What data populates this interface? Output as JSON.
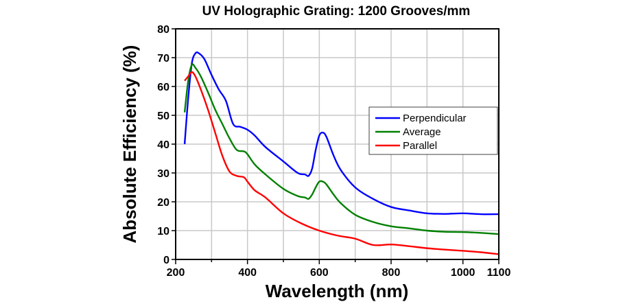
{
  "chart_data": {
    "type": "line",
    "title": "UV Holographic Grating: 1200 Grooves/mm",
    "xlabel": "Wavelength (nm)",
    "ylabel": "Absolute Efficiency (%)",
    "xlim": [
      200,
      1100
    ],
    "ylim": [
      0,
      80
    ],
    "xticks": [
      200,
      400,
      600,
      800,
      1000,
      1100
    ],
    "xtick_labels": [
      "200",
      "400",
      "600",
      "800",
      "1000",
      "1100"
    ],
    "yticks": [
      0,
      10,
      20,
      30,
      40,
      50,
      60,
      70,
      80
    ],
    "ytick_labels": [
      "0",
      "10",
      "20",
      "30",
      "40",
      "50",
      "60",
      "70",
      "80"
    ],
    "grid": true,
    "legend": {
      "position": "center-right"
    },
    "series": [
      {
        "name": "Perpendicular",
        "color": "#0000ff",
        "x": [
          225,
          235,
          245,
          255,
          265,
          280,
          300,
          320,
          340,
          360,
          380,
          400,
          420,
          450,
          500,
          540,
          560,
          570,
          580,
          590,
          600,
          610,
          620,
          640,
          660,
          700,
          750,
          800,
          850,
          900,
          950,
          1000,
          1050,
          1100
        ],
        "y": [
          40,
          56,
          68,
          71.5,
          71.5,
          69.5,
          64,
          59,
          55,
          47,
          46,
          45,
          43,
          39,
          34,
          30,
          29.5,
          29,
          31.5,
          38,
          43,
          44,
          42.5,
          36,
          31,
          25,
          21,
          18.2,
          17,
          16,
          15.8,
          16,
          15.7,
          15.7
        ]
      },
      {
        "name": "Average",
        "color": "#008000",
        "x": [
          225,
          235,
          245,
          255,
          270,
          290,
          310,
          330,
          350,
          370,
          390,
          400,
          420,
          450,
          500,
          540,
          560,
          570,
          580,
          590,
          600,
          610,
          620,
          640,
          660,
          700,
          750,
          800,
          850,
          900,
          950,
          1000,
          1050,
          1100
        ],
        "y": [
          51,
          62,
          67.5,
          66.5,
          63.5,
          58,
          52,
          47,
          42,
          38,
          37.5,
          36.5,
          33,
          29.5,
          24.5,
          22,
          21.5,
          21,
          22.5,
          25,
          27,
          27,
          26,
          22.5,
          19.5,
          15.5,
          13,
          11.5,
          10.8,
          10,
          9.6,
          9.5,
          9.2,
          8.8
        ]
      },
      {
        "name": "Parallel",
        "color": "#ff0000",
        "x": [
          225,
          235,
          245,
          255,
          270,
          290,
          310,
          330,
          350,
          370,
          390,
          400,
          420,
          450,
          500,
          550,
          600,
          650,
          700,
          750,
          800,
          850,
          900,
          950,
          1000,
          1050,
          1100
        ],
        "y": [
          62,
          63.5,
          65,
          63.5,
          59,
          52,
          44,
          36,
          30.5,
          29,
          28.5,
          27,
          24,
          21.5,
          16,
          12.5,
          10,
          8.3,
          7.2,
          5,
          5.2,
          4.6,
          3.9,
          3.4,
          3,
          2.5,
          1.8
        ]
      }
    ]
  }
}
